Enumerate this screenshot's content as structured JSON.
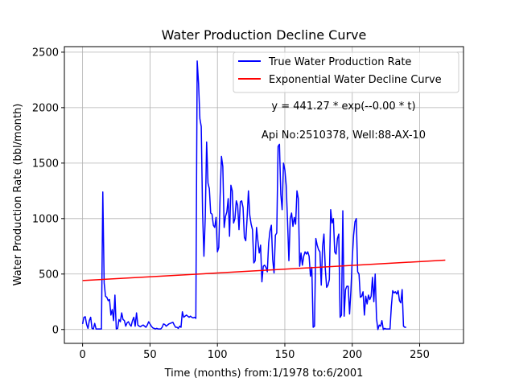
{
  "chart_data": {
    "type": "line",
    "title": "Water Production Decline Curve",
    "xlabel": "Time (months) from:1/1978 to:6/2001",
    "ylabel": "Water Production Rate (bbl/month)",
    "xlim": [
      -13.5,
      282.5
    ],
    "ylim": [
      -125,
      2550
    ],
    "xticks": [
      0,
      50,
      100,
      150,
      200,
      250
    ],
    "yticks": [
      0,
      500,
      1000,
      1500,
      2000,
      2500
    ],
    "grid": true,
    "legend_position": "top-right",
    "annotations": [
      "y = 441.27 * exp(--0.00 * t)",
      "Api No:2510378, Well:88-AX-10"
    ],
    "series": [
      {
        "name": "True Water Production Rate",
        "color": "#0000ff",
        "points": [
          [
            0,
            50
          ],
          [
            1,
            110
          ],
          [
            2,
            115
          ],
          [
            3,
            45
          ],
          [
            4,
            10
          ],
          [
            5,
            80
          ],
          [
            6,
            110
          ],
          [
            7,
            10
          ],
          [
            8,
            5
          ],
          [
            9,
            55
          ],
          [
            10,
            5
          ],
          [
            11,
            5
          ],
          [
            12,
            5
          ],
          [
            13,
            5
          ],
          [
            14,
            5
          ],
          [
            15,
            1240
          ],
          [
            16,
            420
          ],
          [
            17,
            300
          ],
          [
            18,
            290
          ],
          [
            19,
            260
          ],
          [
            20,
            270
          ],
          [
            21,
            130
          ],
          [
            22,
            180
          ],
          [
            23,
            80
          ],
          [
            24,
            310
          ],
          [
            25,
            5
          ],
          [
            26,
            10
          ],
          [
            27,
            90
          ],
          [
            28,
            70
          ],
          [
            29,
            150
          ],
          [
            30,
            90
          ],
          [
            31,
            80
          ],
          [
            32,
            30
          ],
          [
            33,
            60
          ],
          [
            34,
            70
          ],
          [
            35,
            45
          ],
          [
            36,
            30
          ],
          [
            37,
            80
          ],
          [
            38,
            110
          ],
          [
            39,
            30
          ],
          [
            40,
            150
          ],
          [
            41,
            40
          ],
          [
            42,
            30
          ],
          [
            43,
            25
          ],
          [
            44,
            35
          ],
          [
            45,
            40
          ],
          [
            46,
            30
          ],
          [
            47,
            20
          ],
          [
            48,
            40
          ],
          [
            49,
            70
          ],
          [
            50,
            50
          ],
          [
            51,
            30
          ],
          [
            52,
            15
          ],
          [
            53,
            10
          ],
          [
            54,
            5
          ],
          [
            55,
            10
          ],
          [
            56,
            5
          ],
          [
            57,
            5
          ],
          [
            58,
            5
          ],
          [
            59,
            20
          ],
          [
            60,
            50
          ],
          [
            61,
            45
          ],
          [
            62,
            30
          ],
          [
            63,
            40
          ],
          [
            64,
            50
          ],
          [
            65,
            55
          ],
          [
            66,
            60
          ],
          [
            67,
            65
          ],
          [
            68,
            40
          ],
          [
            69,
            20
          ],
          [
            70,
            20
          ],
          [
            71,
            10
          ],
          [
            72,
            30
          ],
          [
            73,
            20
          ],
          [
            74,
            160
          ],
          [
            75,
            110
          ],
          [
            76,
            120
          ],
          [
            77,
            130
          ],
          [
            78,
            120
          ],
          [
            79,
            110
          ],
          [
            80,
            120
          ],
          [
            81,
            110
          ],
          [
            82,
            105
          ],
          [
            83,
            110
          ],
          [
            84,
            100
          ],
          [
            85,
            2420
          ],
          [
            86,
            2220
          ],
          [
            87,
            1900
          ],
          [
            88,
            1830
          ],
          [
            89,
            1050
          ],
          [
            90,
            660
          ],
          [
            91,
            1020
          ],
          [
            92,
            1690
          ],
          [
            93,
            1320
          ],
          [
            94,
            1270
          ],
          [
            95,
            1050
          ],
          [
            96,
            1040
          ],
          [
            97,
            940
          ],
          [
            98,
            920
          ],
          [
            99,
            1010
          ],
          [
            100,
            700
          ],
          [
            101,
            740
          ],
          [
            102,
            1200
          ],
          [
            103,
            1560
          ],
          [
            104,
            1470
          ],
          [
            105,
            920
          ],
          [
            106,
            1020
          ],
          [
            107,
            1060
          ],
          [
            108,
            1180
          ],
          [
            109,
            840
          ],
          [
            110,
            1300
          ],
          [
            111,
            1250
          ],
          [
            112,
            960
          ],
          [
            113,
            1000
          ],
          [
            114,
            1160
          ],
          [
            115,
            1120
          ],
          [
            116,
            900
          ],
          [
            117,
            1150
          ],
          [
            118,
            1160
          ],
          [
            119,
            1100
          ],
          [
            120,
            830
          ],
          [
            121,
            800
          ],
          [
            122,
            1000
          ],
          [
            123,
            1250
          ],
          [
            124,
            1030
          ],
          [
            125,
            950
          ],
          [
            126,
            900
          ],
          [
            127,
            600
          ],
          [
            128,
            620
          ],
          [
            129,
            920
          ],
          [
            130,
            800
          ],
          [
            131,
            690
          ],
          [
            132,
            760
          ],
          [
            133,
            430
          ],
          [
            134,
            570
          ],
          [
            135,
            580
          ],
          [
            136,
            560
          ],
          [
            137,
            520
          ],
          [
            138,
            780
          ],
          [
            139,
            890
          ],
          [
            140,
            940
          ],
          [
            141,
            630
          ],
          [
            142,
            510
          ],
          [
            143,
            850
          ],
          [
            144,
            870
          ],
          [
            145,
            1650
          ],
          [
            146,
            1670
          ],
          [
            147,
            1220
          ],
          [
            148,
            1080
          ],
          [
            149,
            1500
          ],
          [
            150,
            1440
          ],
          [
            151,
            1300
          ],
          [
            152,
            980
          ],
          [
            153,
            620
          ],
          [
            154,
            1000
          ],
          [
            155,
            1050
          ],
          [
            156,
            930
          ],
          [
            157,
            1010
          ],
          [
            158,
            950
          ],
          [
            159,
            1250
          ],
          [
            160,
            1180
          ],
          [
            161,
            570
          ],
          [
            162,
            690
          ],
          [
            163,
            580
          ],
          [
            164,
            660
          ],
          [
            165,
            700
          ],
          [
            166,
            680
          ],
          [
            167,
            700
          ],
          [
            168,
            660
          ],
          [
            169,
            480
          ],
          [
            170,
            560
          ],
          [
            171,
            20
          ],
          [
            172,
            30
          ],
          [
            173,
            820
          ],
          [
            174,
            760
          ],
          [
            175,
            720
          ],
          [
            176,
            700
          ],
          [
            177,
            400
          ],
          [
            178,
            750
          ],
          [
            179,
            860
          ],
          [
            180,
            550
          ],
          [
            181,
            380
          ],
          [
            182,
            400
          ],
          [
            183,
            450
          ],
          [
            184,
            1080
          ],
          [
            185,
            960
          ],
          [
            186,
            1000
          ],
          [
            187,
            700
          ],
          [
            188,
            680
          ],
          [
            189,
            820
          ],
          [
            190,
            860
          ],
          [
            191,
            110
          ],
          [
            192,
            130
          ],
          [
            193,
            1070
          ],
          [
            194,
            120
          ],
          [
            195,
            360
          ],
          [
            196,
            390
          ],
          [
            197,
            390
          ],
          [
            198,
            140
          ],
          [
            199,
            350
          ],
          [
            200,
            640
          ],
          [
            201,
            850
          ],
          [
            202,
            970
          ],
          [
            203,
            1000
          ],
          [
            204,
            520
          ],
          [
            205,
            500
          ],
          [
            206,
            290
          ],
          [
            207,
            300
          ],
          [
            208,
            340
          ],
          [
            209,
            130
          ],
          [
            210,
            300
          ],
          [
            211,
            230
          ],
          [
            212,
            310
          ],
          [
            213,
            270
          ],
          [
            214,
            300
          ],
          [
            215,
            470
          ],
          [
            216,
            250
          ],
          [
            217,
            500
          ],
          [
            218,
            100
          ],
          [
            219,
            0
          ],
          [
            220,
            40
          ],
          [
            221,
            30
          ],
          [
            222,
            80
          ],
          [
            223,
            0
          ],
          [
            224,
            10
          ],
          [
            225,
            5
          ],
          [
            226,
            5
          ],
          [
            227,
            5
          ],
          [
            228,
            5
          ],
          [
            229,
            210
          ],
          [
            230,
            350
          ],
          [
            231,
            330
          ],
          [
            232,
            340
          ],
          [
            233,
            320
          ],
          [
            234,
            350
          ],
          [
            235,
            260
          ],
          [
            236,
            240
          ],
          [
            237,
            360
          ],
          [
            238,
            30
          ],
          [
            239,
            20
          ],
          [
            240,
            20
          ]
        ]
      },
      {
        "name": "Exponential Water Decline Curve",
        "color": "#ff0000",
        "points": [
          [
            0,
            441.27
          ],
          [
            269,
            625
          ]
        ]
      }
    ]
  }
}
